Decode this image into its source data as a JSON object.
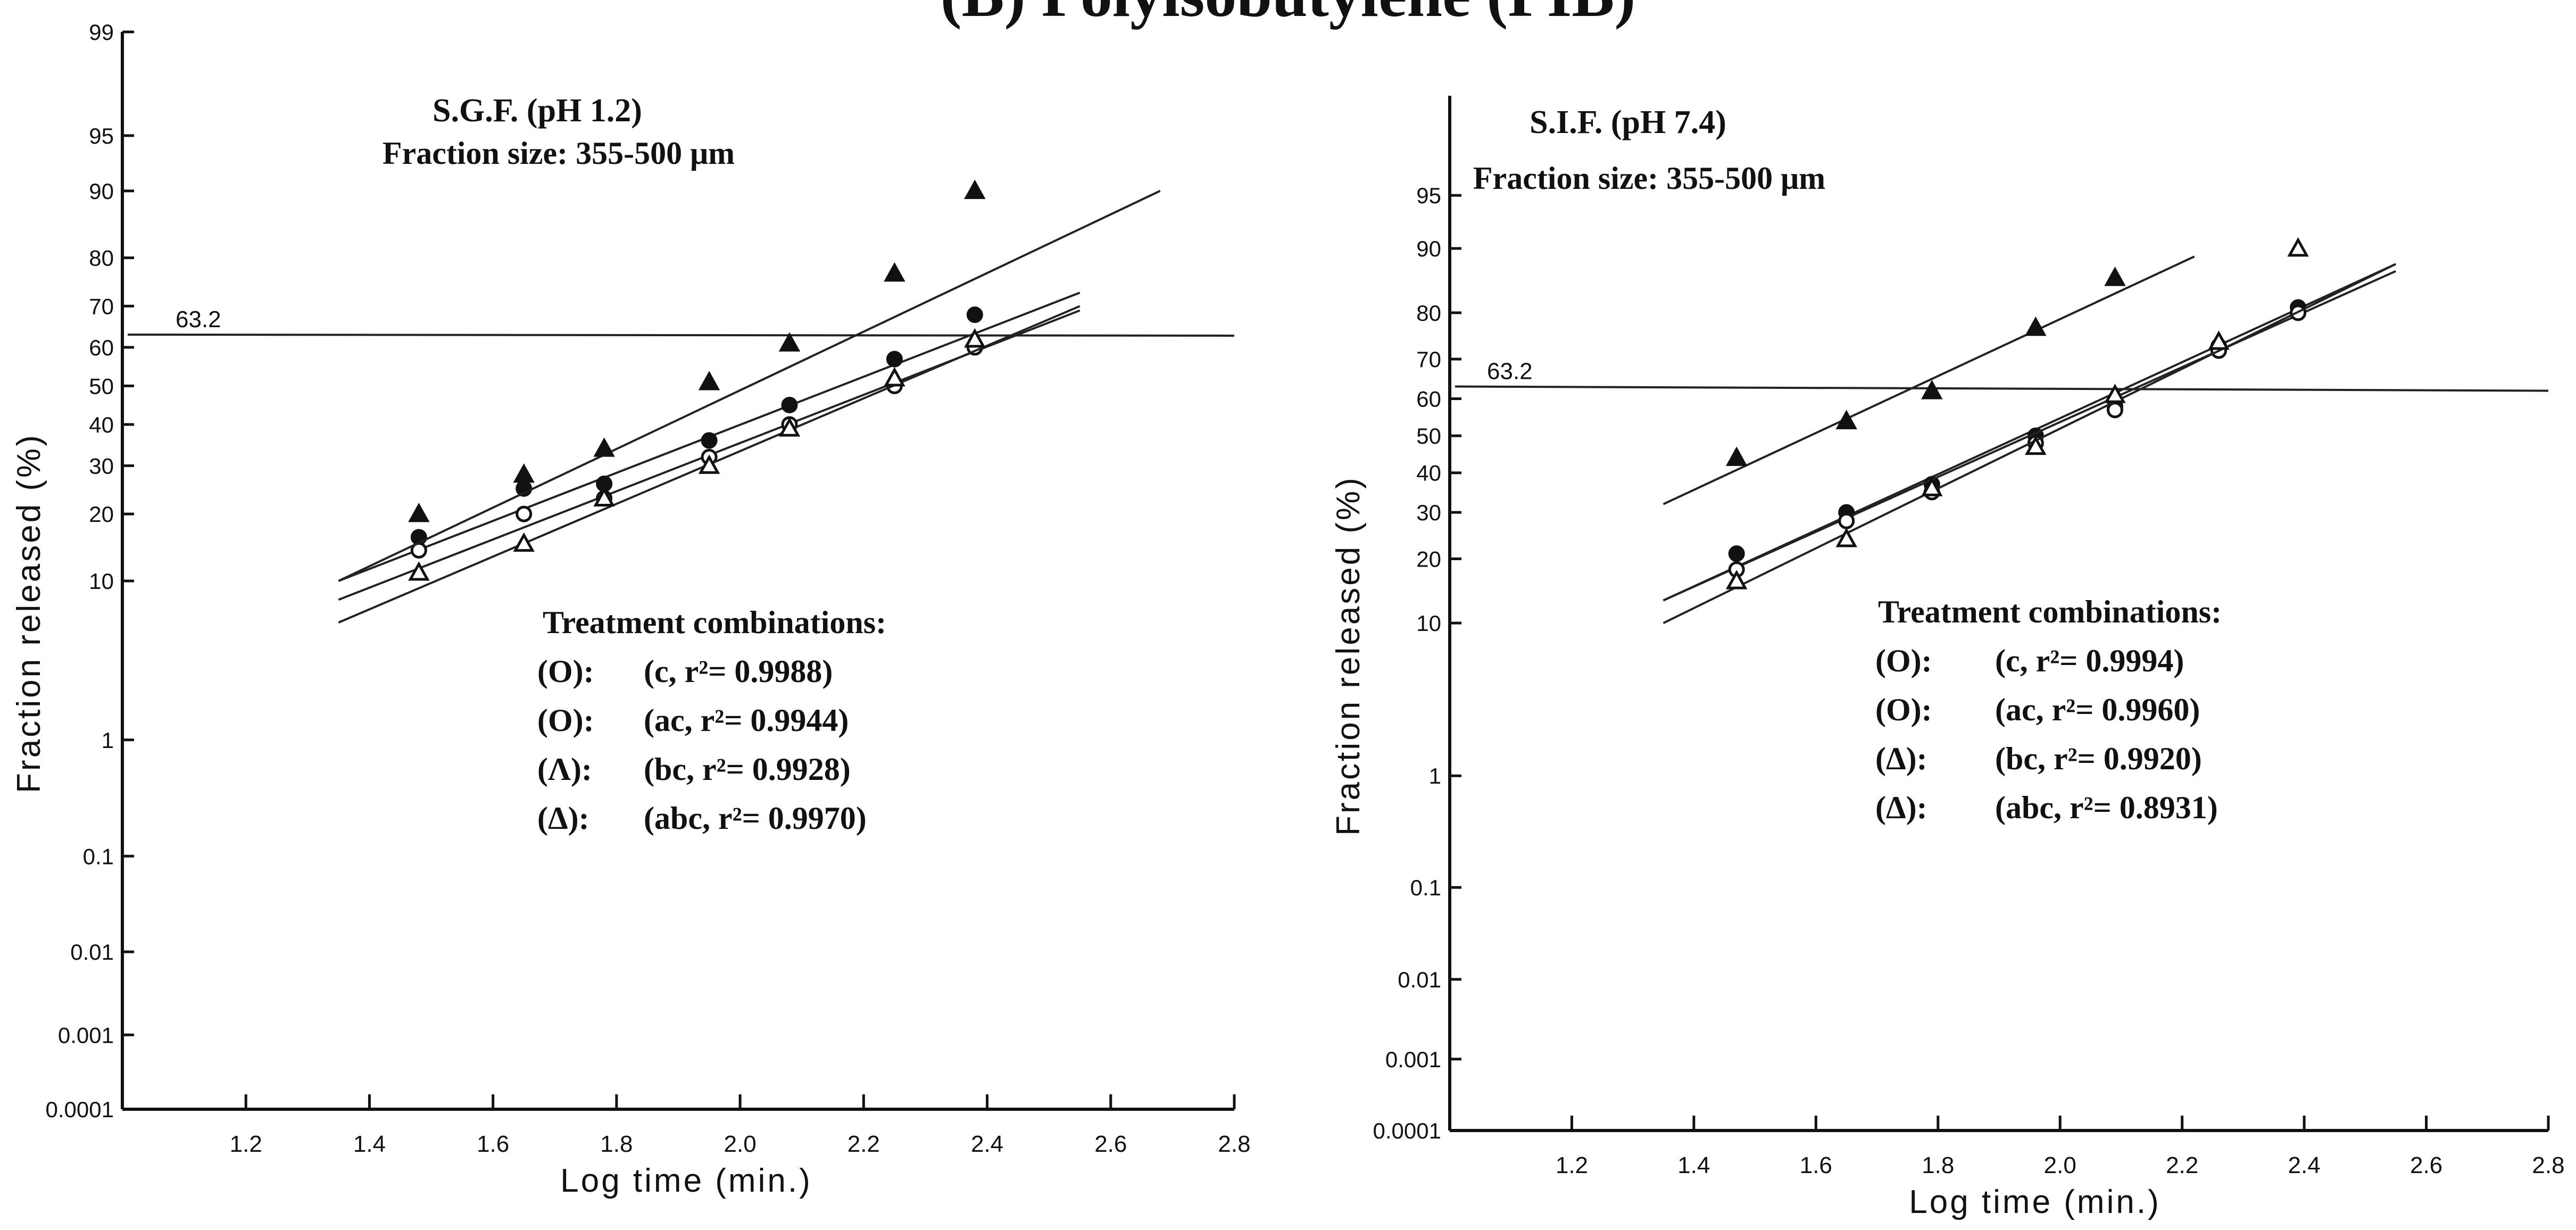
{
  "figure": {
    "title": "(B) Polyisobutylene (PIB)"
  },
  "chart_data": [
    {
      "type": "scatter",
      "title": "S.G.F. (pH 1.2)",
      "subtitle": "Fraction size: 355-500 μm",
      "xlabel": "Log time (min.)",
      "ylabel": "Fraction released (%)",
      "xlim": [
        1.0,
        2.8
      ],
      "ylim": [
        0.0001,
        99
      ],
      "yscale": "probability",
      "x_ticks": [
        "1.2",
        "1.4",
        "1.6",
        "1.8",
        "2.0",
        "2.2",
        "2.4",
        "2.6",
        "2.8"
      ],
      "y_ticks": [
        "0.0001",
        "0.001",
        "0.01",
        "0.1",
        "1",
        "10",
        "20",
        "30",
        "40",
        "50",
        "60",
        "70",
        "80",
        "90",
        "95",
        "99"
      ],
      "reference_line": {
        "y": 63.2,
        "label": "63.2"
      },
      "legend_title": "Treatment combinations:",
      "series": [
        {
          "name": "(c, r²= 0.9988)",
          "symbol": "(O):",
          "marker": "filled-circle",
          "x": [
            1.48,
            1.65,
            1.78,
            1.95,
            2.08,
            2.25,
            2.38
          ],
          "y": [
            16,
            25,
            26,
            36,
            45,
            57,
            68
          ],
          "fit": {
            "x": [
              1.35,
              2.55
            ],
            "y": [
              10,
              73
            ]
          }
        },
        {
          "name": "(ac, r²= 0.9944)",
          "symbol": "(O):",
          "marker": "open-circle",
          "x": [
            1.48,
            1.65,
            1.78,
            1.95,
            2.08,
            2.25,
            2.38
          ],
          "y": [
            14,
            20,
            23,
            32,
            40,
            50,
            60
          ],
          "fit": {
            "x": [
              1.35,
              2.55
            ],
            "y": [
              8,
              69
            ]
          }
        },
        {
          "name": "(bc, r²= 0.9928)",
          "symbol": "(Λ):",
          "marker": "filled-triangle",
          "x": [
            1.48,
            1.65,
            1.78,
            1.95,
            2.08,
            2.25,
            2.38
          ],
          "y": [
            20,
            28,
            34,
            51,
            61,
            77,
            90
          ],
          "fit": {
            "x": [
              1.35,
              2.68
            ],
            "y": [
              10,
              90
            ]
          }
        },
        {
          "name": "(abc, r²= 0.9970)",
          "symbol": "(Δ):",
          "marker": "open-triangle",
          "x": [
            1.48,
            1.65,
            1.78,
            1.95,
            2.08,
            2.25,
            2.38
          ],
          "y": [
            11,
            15,
            23,
            30,
            39,
            52,
            62
          ],
          "fit": {
            "x": [
              1.35,
              2.55
            ],
            "y": [
              6,
              70
            ]
          }
        }
      ]
    },
    {
      "type": "scatter",
      "title": "S.I.F. (pH 7.4)",
      "subtitle": "Fraction size: 355-500 μm",
      "xlabel": "Log time (min.)",
      "ylabel": "Fraction released (%)",
      "xlim": [
        1.0,
        2.8
      ],
      "ylim": [
        0.0001,
        99
      ],
      "yscale": "probability",
      "x_ticks": [
        "1.2",
        "1.4",
        "1.6",
        "1.8",
        "2.0",
        "2.2",
        "2.4",
        "2.6",
        "2.8"
      ],
      "y_ticks": [
        "0.0001",
        "0.001",
        "0.01",
        "0.1",
        "1",
        "10",
        "20",
        "30",
        "40",
        "50",
        "60",
        "70",
        "80",
        "90",
        "95"
      ],
      "reference_line": {
        "y": 63.2,
        "label": "63.2"
      },
      "legend_title": "Treatment combinations:",
      "series": [
        {
          "name": "(c, r²= 0.9994)",
          "symbol": "(O):",
          "marker": "filled-circle",
          "x": [
            1.47,
            1.65,
            1.79,
            1.96,
            2.09,
            2.26,
            2.39
          ],
          "y": [
            21,
            30,
            37,
            50,
            58,
            73,
            81
          ],
          "fit": {
            "x": [
              1.35,
              2.55
            ],
            "y": [
              13,
              88
            ]
          }
        },
        {
          "name": "(ac, r²= 0.9960)",
          "symbol": "(O):",
          "marker": "open-circle",
          "x": [
            1.47,
            1.65,
            1.79,
            1.96,
            2.09,
            2.26,
            2.39
          ],
          "y": [
            18,
            28,
            35,
            48,
            57,
            72,
            80
          ],
          "fit": {
            "x": [
              1.35,
              2.55
            ],
            "y": [
              13,
              87
            ]
          }
        },
        {
          "name": "(bc, r²= 0.9920)",
          "symbol": "(Δ):",
          "marker": "filled-triangle",
          "x": [
            1.47,
            1.65,
            1.79,
            1.96,
            2.09
          ],
          "y": [
            44,
            54,
            62,
            77,
            86
          ],
          "fit": {
            "x": [
              1.35,
              2.22
            ],
            "y": [
              32,
              89
            ]
          }
        },
        {
          "name": "(abc, r²= 0.8931)",
          "symbol": "(Δ):",
          "marker": "open-triangle",
          "x": [
            1.47,
            1.65,
            1.79,
            1.96,
            2.09,
            2.26,
            2.39
          ],
          "y": [
            16,
            24,
            36,
            47,
            61,
            74,
            90
          ],
          "fit": {
            "x": [
              1.35,
              2.55
            ],
            "y": [
              10,
              88
            ]
          }
        }
      ]
    }
  ]
}
